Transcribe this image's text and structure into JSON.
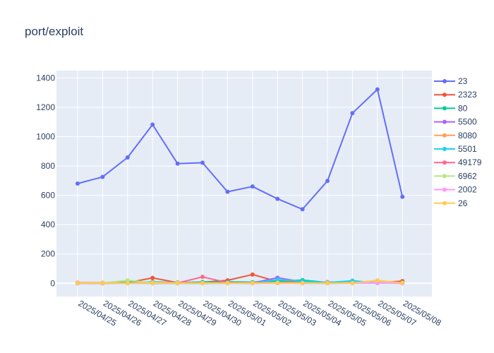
{
  "chart_data": {
    "type": "line",
    "title": "port/exploit",
    "xlabel": "",
    "ylabel": "",
    "x": [
      "2025/04/25",
      "2025/04/26",
      "2025/04/27",
      "2025/04/28",
      "2025/04/29",
      "2025/04/30",
      "2025/05/01",
      "2025/05/02",
      "2025/05/03",
      "2025/05/04",
      "2025/05/05",
      "2025/05/06",
      "2025/05/07",
      "2025/05/08"
    ],
    "ylim": [
      -90,
      1450
    ],
    "yticks": [
      0,
      200,
      400,
      600,
      800,
      1000,
      1200,
      1400
    ],
    "grid": true,
    "legend_position": "right",
    "series": [
      {
        "name": "23",
        "color": "#636efa",
        "values": [
          680,
          725,
          858,
          1082,
          816,
          822,
          624,
          660,
          576,
          505,
          698,
          1160,
          1322,
          590
        ]
      },
      {
        "name": "2323",
        "color": "#EF553B",
        "values": [
          3,
          2,
          5,
          37,
          5,
          8,
          20,
          60,
          12,
          8,
          6,
          5,
          5,
          15
        ]
      },
      {
        "name": "80",
        "color": "#00cc96",
        "values": [
          2,
          3,
          8,
          10,
          6,
          8,
          10,
          8,
          15,
          22,
          6,
          10,
          6,
          5
        ]
      },
      {
        "name": "5500",
        "color": "#ab63fa",
        "values": [
          0,
          1,
          2,
          1,
          0,
          1,
          2,
          3,
          38,
          10,
          5,
          4,
          2,
          1
        ]
      },
      {
        "name": "8080",
        "color": "#FFA15A",
        "values": [
          5,
          4,
          3,
          6,
          5,
          2,
          3,
          4,
          5,
          4,
          10,
          6,
          8,
          4
        ]
      },
      {
        "name": "5501",
        "color": "#19d3f3",
        "values": [
          0,
          0,
          1,
          0,
          0,
          0,
          1,
          0,
          25,
          15,
          5,
          18,
          3,
          2
        ]
      },
      {
        "name": "49179",
        "color": "#FF6692",
        "values": [
          1,
          0,
          2,
          3,
          2,
          44,
          5,
          2,
          3,
          2,
          1,
          2,
          3,
          1
        ]
      },
      {
        "name": "6962",
        "color": "#B6E880",
        "values": [
          0,
          2,
          20,
          5,
          2,
          2,
          2,
          2,
          3,
          2,
          2,
          2,
          5,
          3
        ]
      },
      {
        "name": "2002",
        "color": "#FF97FF",
        "values": [
          0,
          0,
          2,
          3,
          1,
          0,
          1,
          0,
          1,
          0,
          0,
          1,
          2,
          0
        ]
      },
      {
        "name": "26",
        "color": "#FECB52",
        "values": [
          2,
          1,
          0,
          1,
          0,
          1,
          0,
          1,
          2,
          1,
          0,
          2,
          20,
          3
        ]
      }
    ]
  }
}
